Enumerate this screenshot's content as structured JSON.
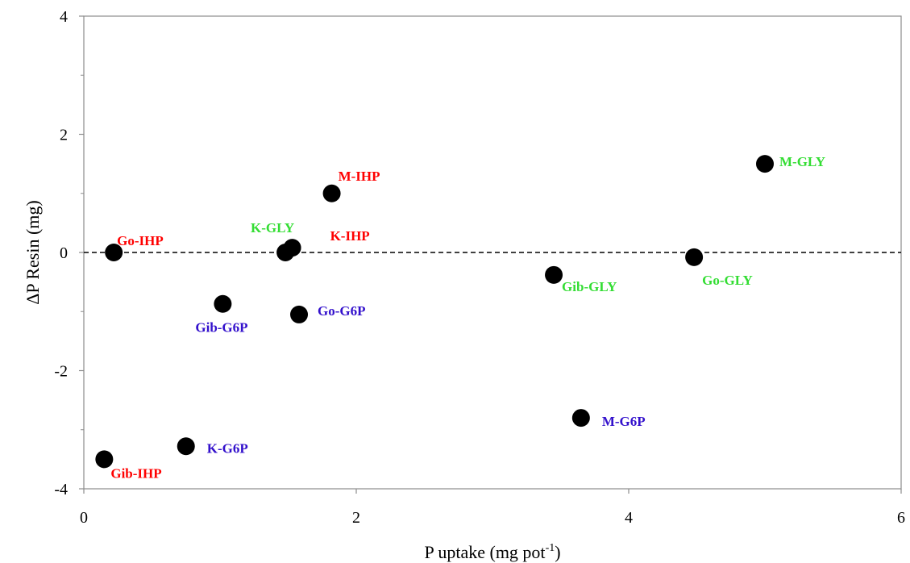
{
  "chart_data": {
    "type": "scatter",
    "title": "",
    "xlabel": "P uptake (mg pot",
    "xlabel_sup": "-1",
    "xlabel_end": ")",
    "ylabel": "ΔP Resin  (mg)",
    "xlim": [
      0,
      6
    ],
    "ylim": [
      -4,
      4
    ],
    "x_ticks": [
      0,
      2,
      4,
      6
    ],
    "x_tick_labels": [
      "0",
      "2",
      "4",
      "6"
    ],
    "y_ticks": [
      -4,
      -2,
      0,
      2,
      4
    ],
    "y_tick_labels": [
      "-4",
      "-2",
      "0",
      "2",
      "4"
    ],
    "y_minor_ticks": [
      -3,
      -1,
      1,
      3
    ],
    "grid": false,
    "reference_line": {
      "y": 0,
      "style": "dashed"
    },
    "marker_color": "#000000",
    "colors": {
      "IHP": "#ff0000",
      "GLY": "#33dd33",
      "G6P": "#3311cc"
    },
    "points": [
      {
        "label": "Go-IHP",
        "x": 0.22,
        "y": 0.0,
        "group": "IHP"
      },
      {
        "label": "Gib-IHP",
        "x": 0.15,
        "y": -3.5,
        "group": "IHP"
      },
      {
        "label": "K-IHP",
        "x": 1.53,
        "y": 0.08,
        "group": "IHP"
      },
      {
        "label": "M-IHP",
        "x": 1.82,
        "y": 1.0,
        "group": "IHP"
      },
      {
        "label": "K-GLY",
        "x": 1.48,
        "y": 0.0,
        "group": "GLY"
      },
      {
        "label": "Gib-GLY",
        "x": 3.45,
        "y": -0.38,
        "group": "GLY"
      },
      {
        "label": "Go-GLY",
        "x": 4.48,
        "y": -0.08,
        "group": "GLY"
      },
      {
        "label": "M-GLY",
        "x": 5.0,
        "y": 1.5,
        "group": "GLY"
      },
      {
        "label": "Gib-G6P",
        "x": 1.02,
        "y": -0.87,
        "group": "G6P"
      },
      {
        "label": "Go-G6P",
        "x": 1.58,
        "y": -1.05,
        "group": "G6P"
      },
      {
        "label": "K-G6P",
        "x": 0.75,
        "y": -3.28,
        "group": "G6P"
      },
      {
        "label": "M-G6P",
        "x": 3.65,
        "y": -2.8,
        "group": "G6P"
      }
    ]
  }
}
